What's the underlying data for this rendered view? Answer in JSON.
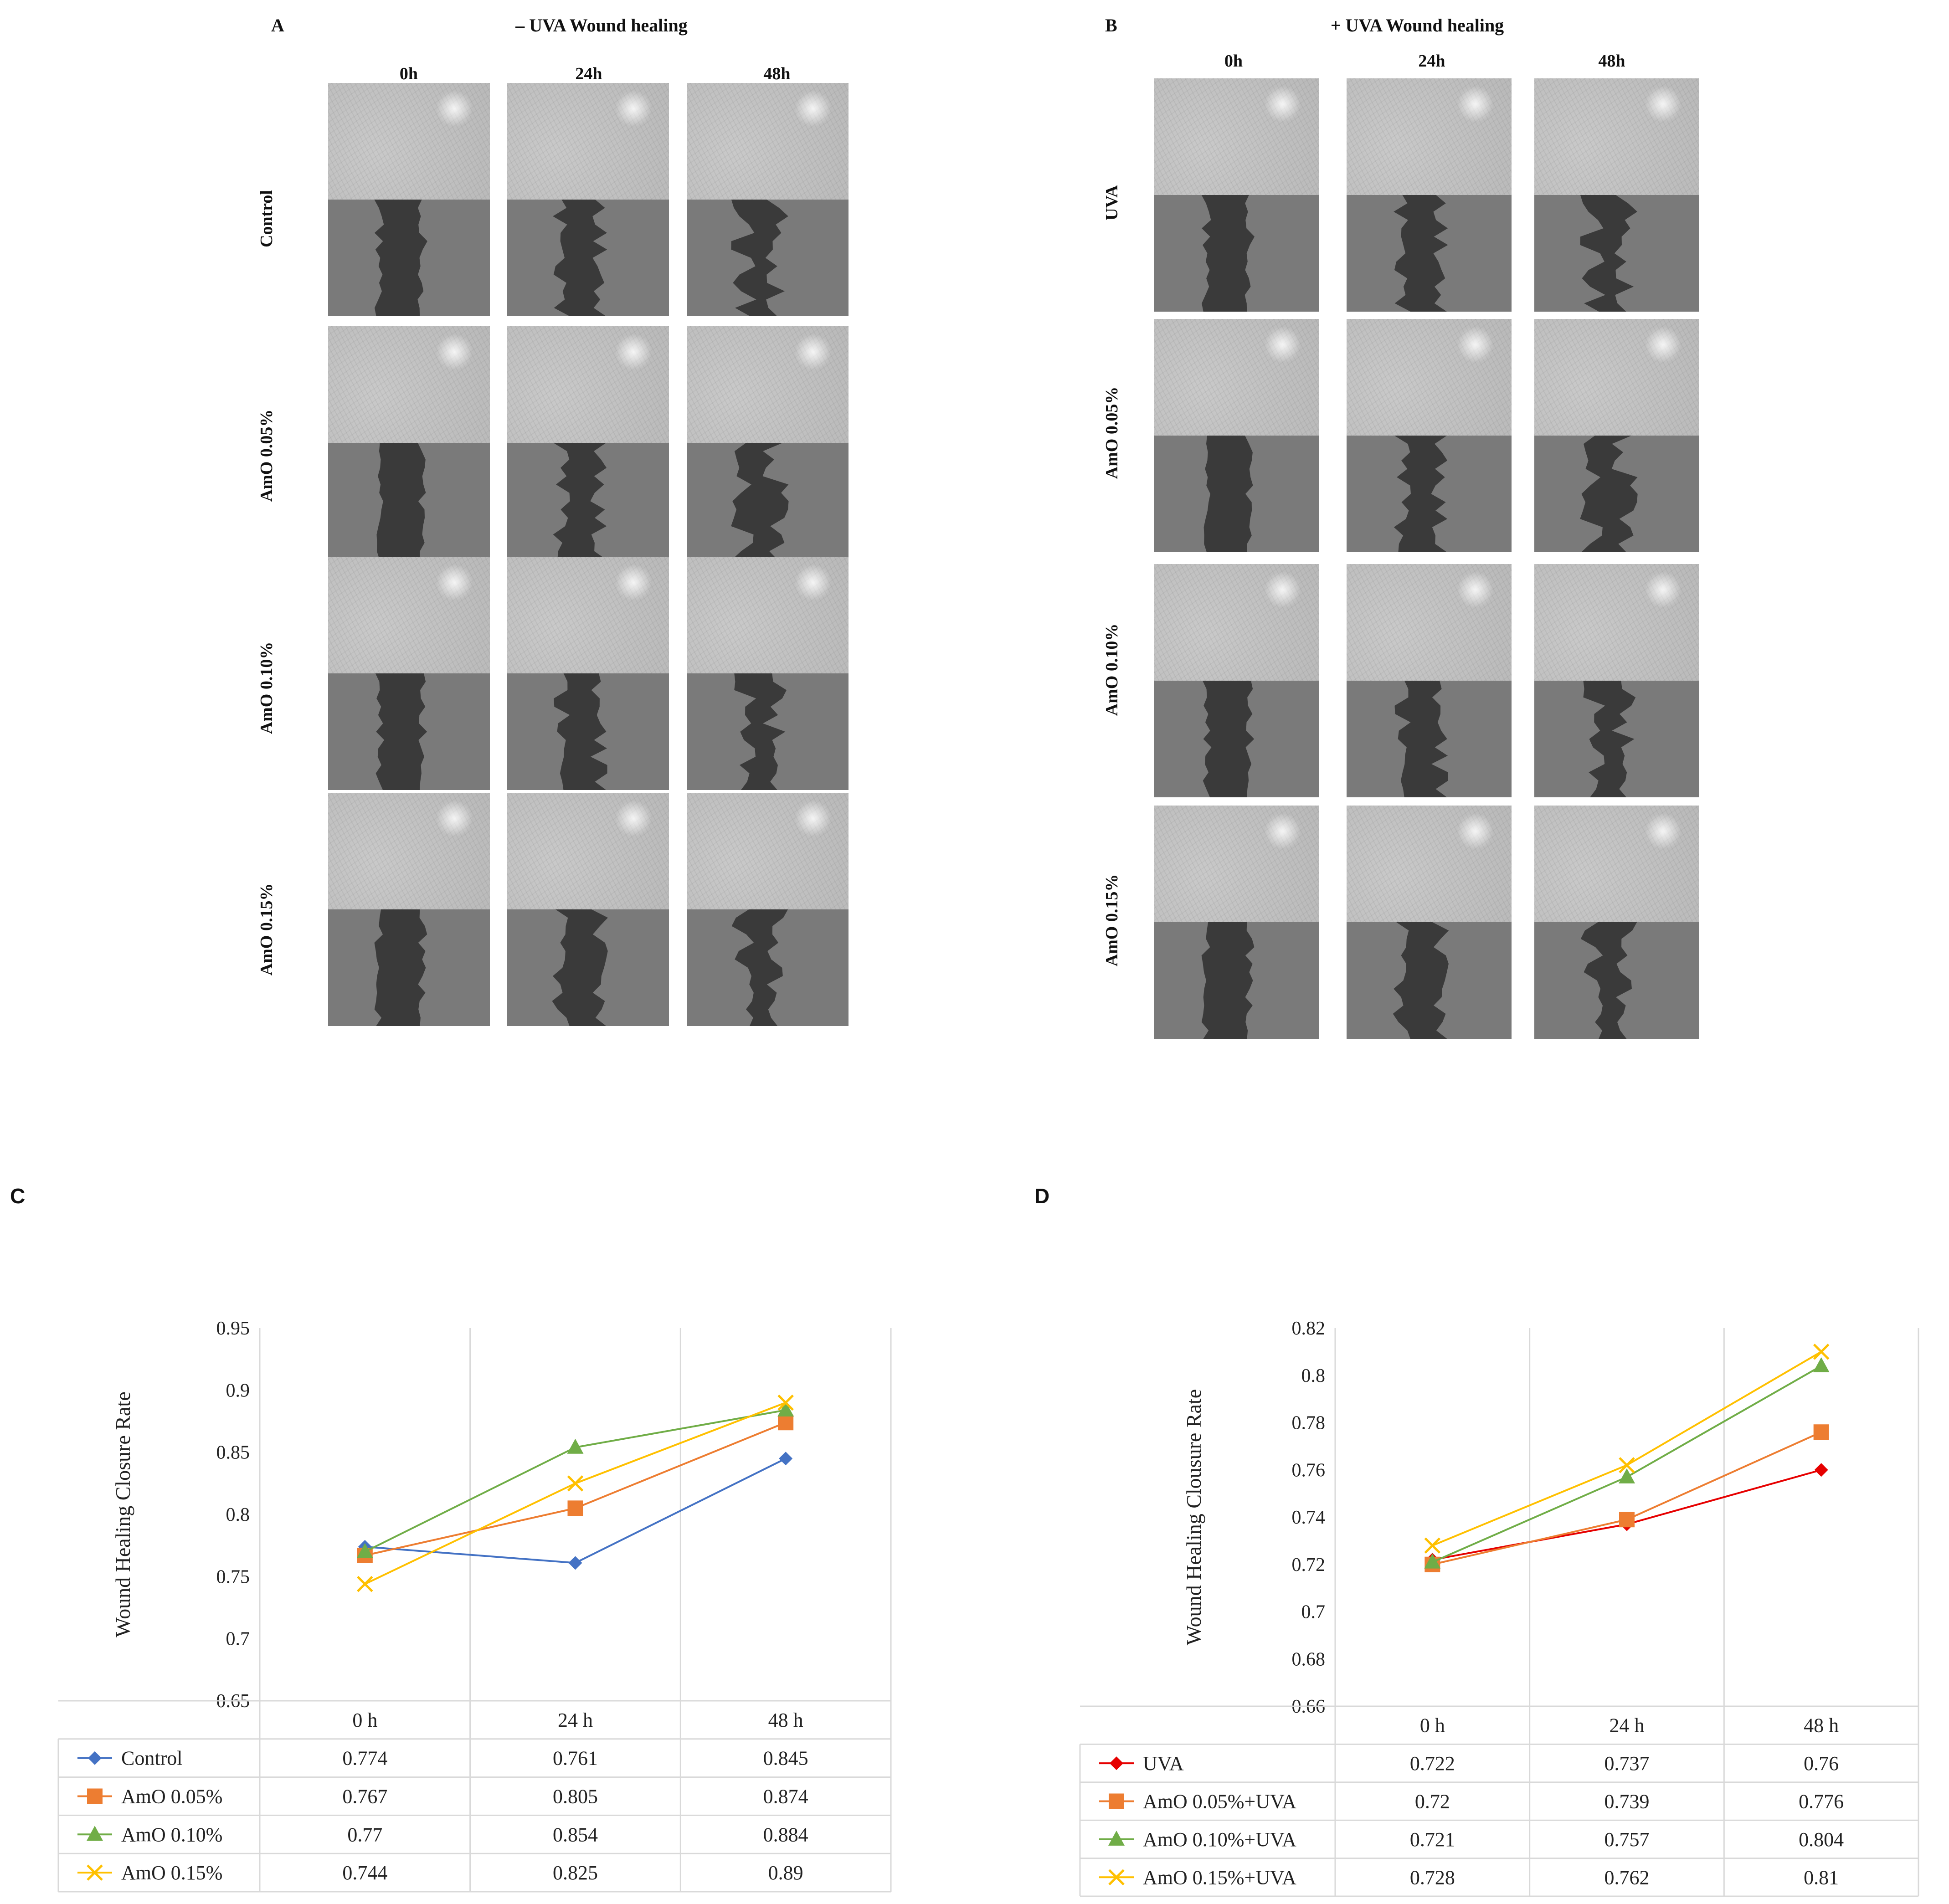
{
  "panels": {
    "A": {
      "letter": "A",
      "title": "– UVA Wound healing",
      "columns": [
        "0h",
        "24h",
        "48h"
      ],
      "rows": [
        "Control",
        "AmO 0.05%",
        "AmO 0.10%",
        "AmO 0.15%"
      ]
    },
    "B": {
      "letter": "B",
      "title": "+ UVA Wound healing",
      "columns": [
        "0h",
        "24h",
        "48h"
      ],
      "rows": [
        "UVA",
        "AmO 0.05%",
        "AmO 0.10%",
        "AmO 0.15%"
      ]
    },
    "C": {
      "letter": "C"
    },
    "D": {
      "letter": "D"
    }
  },
  "chart_data": [
    {
      "panel": "C",
      "type": "line",
      "title": "",
      "xlabel": "",
      "ylabel": "Wound Healing Closure Rate",
      "categories": [
        "0 h",
        "24 h",
        "48 h"
      ],
      "ylim": [
        0.65,
        0.95
      ],
      "yticks": [
        "0.65",
        "0.7",
        "0.75",
        "0.8",
        "0.85",
        "0.9",
        "0.95"
      ],
      "grid": "vertical",
      "legend": "data-table-below",
      "series": [
        {
          "name": "Control",
          "color": "#4472c4",
          "marker": "diamond",
          "values": [
            0.774,
            0.761,
            0.845
          ],
          "labels": [
            "0.774",
            "0.761",
            "0.845"
          ]
        },
        {
          "name": "AmO 0.05%",
          "color": "#ed7d31",
          "marker": "square",
          "values": [
            0.767,
            0.805,
            0.874
          ],
          "labels": [
            "0.767",
            "0.805",
            "0.874"
          ]
        },
        {
          "name": "AmO 0.10%",
          "color": "#70ad47",
          "marker": "triangle",
          "values": [
            0.77,
            0.854,
            0.884
          ],
          "labels": [
            "0.77",
            "0.854",
            "0.884"
          ]
        },
        {
          "name": "AmO 0.15%",
          "color": "#ffc000",
          "marker": "x",
          "values": [
            0.744,
            0.825,
            0.89
          ],
          "labels": [
            "0.744",
            "0.825",
            "0.89"
          ]
        }
      ]
    },
    {
      "panel": "D",
      "type": "line",
      "title": "",
      "xlabel": "",
      "ylabel": "Wound Healing Clousure Rate",
      "categories": [
        "0 h",
        "24 h",
        "48 h"
      ],
      "ylim": [
        0.66,
        0.82
      ],
      "yticks": [
        "0.66",
        "0.68",
        "0.7",
        "0.72",
        "0.74",
        "0.76",
        "0.78",
        "0.8",
        "0.82"
      ],
      "grid": "vertical",
      "legend": "data-table-below",
      "series": [
        {
          "name": "UVA",
          "color": "#e60000",
          "marker": "diamond",
          "values": [
            0.722,
            0.737,
            0.76
          ],
          "labels": [
            "0.722",
            "0.737",
            "0.76"
          ]
        },
        {
          "name": "AmO 0.05%+UVA",
          "color": "#ed7d31",
          "marker": "square",
          "values": [
            0.72,
            0.739,
            0.776
          ],
          "labels": [
            "0.72",
            "0.739",
            "0.776"
          ]
        },
        {
          "name": "AmO 0.10%+UVA",
          "color": "#70ad47",
          "marker": "triangle",
          "values": [
            0.721,
            0.757,
            0.804
          ],
          "labels": [
            "0.721",
            "0.757",
            "0.804"
          ]
        },
        {
          "name": "AmO 0.15%+UVA",
          "color": "#ffc000",
          "marker": "x",
          "values": [
            0.728,
            0.762,
            0.81
          ],
          "labels": [
            "0.728",
            "0.762",
            "0.81"
          ]
        }
      ]
    }
  ]
}
